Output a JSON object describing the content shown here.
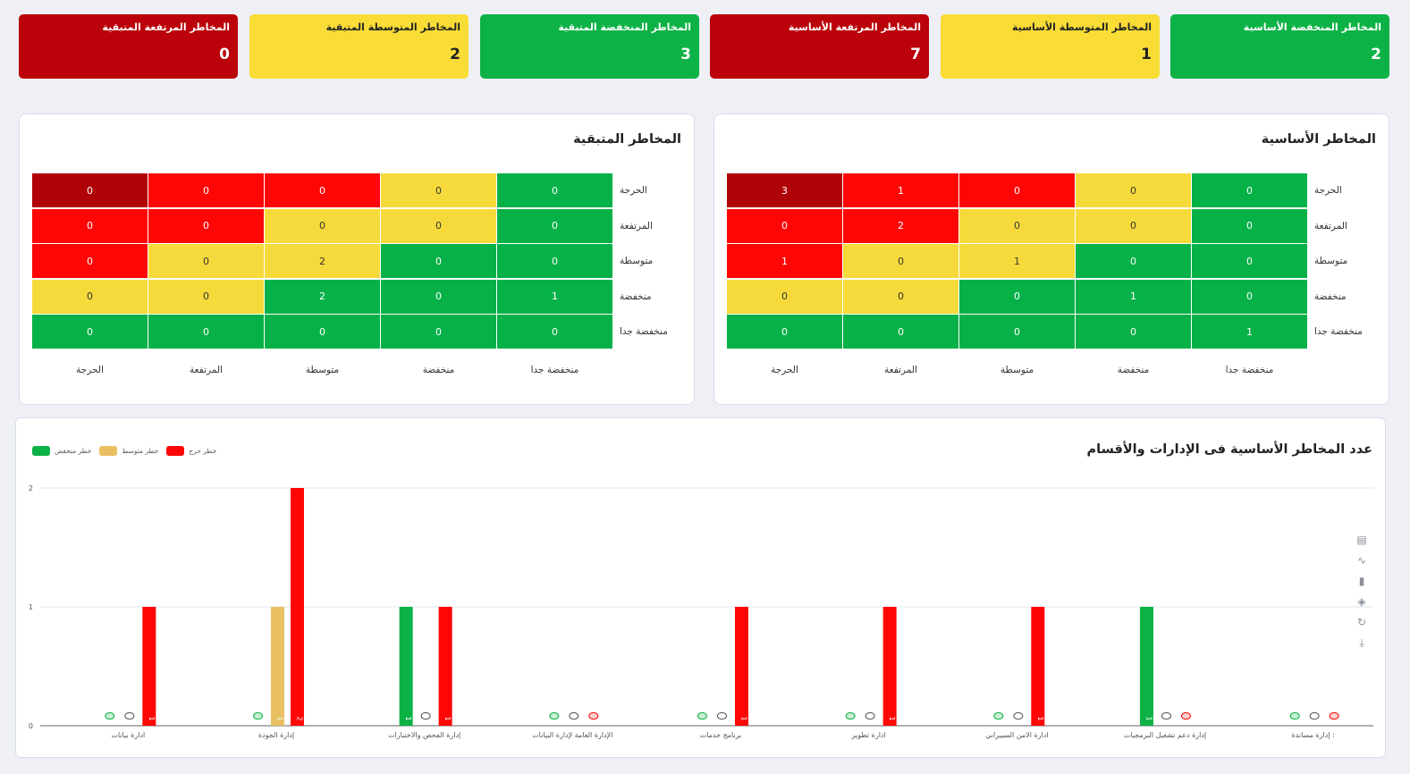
{
  "kpis": [
    {
      "label": "المخاطر المنخفضة الأساسية",
      "value": "2",
      "color": "green"
    },
    {
      "label": "المخاطر المتوسطة الأساسية",
      "value": "1",
      "color": "yellow"
    },
    {
      "label": "المخاطر المرتفعة الأساسية",
      "value": "7",
      "color": "red"
    },
    {
      "label": "المخاطر المنخفضة المتبقية",
      "value": "3",
      "color": "green"
    },
    {
      "label": "المخاطر المتوسطة المتبقية",
      "value": "2",
      "color": "yellow"
    },
    {
      "label": "المخاطر المرتفعة المتبقية",
      "value": "0",
      "color": "red"
    }
  ],
  "basic_matrix": {
    "title": "المخاطر الأساسية",
    "row_labels": [
      "الحرجة",
      "المرتفعة",
      "متوسطة",
      "منخفضة",
      "منخفضة جدا"
    ],
    "col_labels": [
      "الحرجة",
      "المرتفعة",
      "متوسطة",
      "منخفضة",
      "منخفضة جدا"
    ],
    "values": [
      [
        "3",
        "1",
        "0",
        "0",
        "0"
      ],
      [
        "0",
        "2",
        "0",
        "0",
        "0"
      ],
      [
        "1",
        "0",
        "1",
        "0",
        "0"
      ],
      [
        "0",
        "0",
        "0",
        "1",
        "0"
      ],
      [
        "0",
        "0",
        "0",
        "0",
        "1"
      ]
    ]
  },
  "residual_matrix": {
    "title": "المخاطر المتبقية",
    "row_labels": [
      "الحرجة",
      "المرتفعة",
      "متوسطة",
      "منخفضة",
      "منخفضة جدا"
    ],
    "col_labels": [
      "الحرجة",
      "المرتفعة",
      "متوسطة",
      "منخفضة",
      "منخفضة جدا"
    ],
    "values": [
      [
        "0",
        "0",
        "0",
        "0",
        "0"
      ],
      [
        "0",
        "0",
        "0",
        "0",
        "0"
      ],
      [
        "0",
        "0",
        "2",
        "0",
        "0"
      ],
      [
        "0",
        "0",
        "2",
        "0",
        "1"
      ],
      [
        "0",
        "0",
        "0",
        "0",
        "0"
      ]
    ]
  },
  "chart_data": {
    "type": "bar",
    "title": "عدد المخاطر الأساسية فى الإدارات والأقسام",
    "categories": [
      "ادارة بيانات",
      "إدارة الجودة",
      "إدارة الفحص والاختبارات",
      "الإدارة العامة لإدارة البيانات",
      "برنامج خدمات",
      "ادارة تطوير",
      "ادارة الامن السيبراني",
      "إدارة دعم تشغيل البرمجيات",
      "إدارة مساندة :"
    ],
    "series": [
      {
        "name": "خطر منخفض",
        "color": "#0cb246",
        "values": [
          0,
          0,
          1,
          0,
          0,
          0,
          0,
          1,
          0
        ]
      },
      {
        "name": "خطر متوسط",
        "color": "#e8c062",
        "values": [
          0,
          1,
          0,
          0,
          0,
          0,
          0,
          0,
          0
        ]
      },
      {
        "name": "خطر حرج",
        "color": "#fe0606",
        "values": [
          1,
          2,
          1,
          0,
          1,
          1,
          1,
          0,
          0
        ]
      }
    ],
    "ylim": [
      0,
      2
    ],
    "yticks": [
      "0",
      "1",
      "2"
    ],
    "grid": true,
    "legend": "top-left"
  }
}
